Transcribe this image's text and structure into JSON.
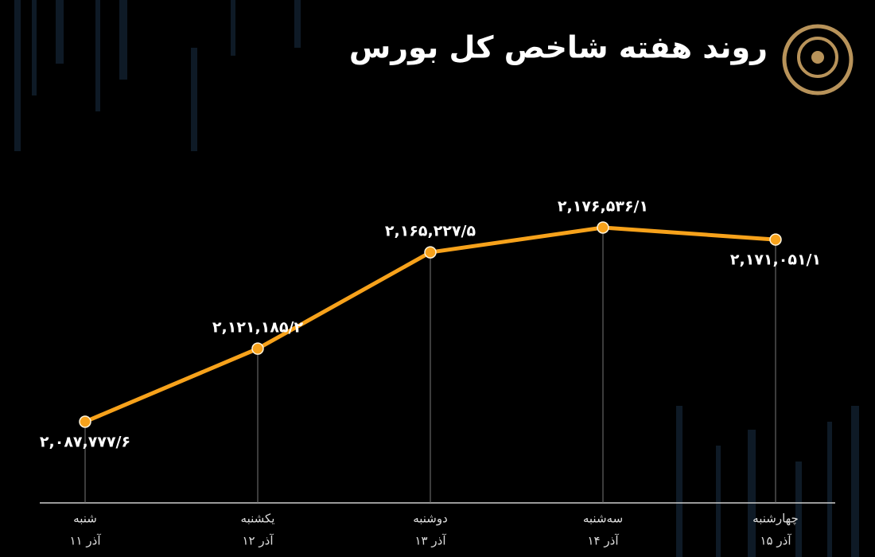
{
  "chart_data": {
    "type": "line",
    "title": "روند هفته شاخص کل بورس",
    "categories": [
      "شنبه",
      "یکشنبه",
      "دوشنبه",
      "سه‌شنبه",
      "چهارشنبه"
    ],
    "dates": [
      "۱۱ آذر",
      "۱۲ آذر",
      "۱۳ آذر",
      "۱۴ آذر",
      "۱۵ آذر"
    ],
    "values": [
      2087777.6,
      2121185.2,
      2165227.5,
      2176536.1,
      2171051.1
    ],
    "value_labels": [
      "۲,۰۸۷,۷۷۷/۶",
      "۲,۱۲۱,۱۸۵/۲",
      "۲,۱۶۵,۲۲۷/۵",
      "۲,۱۷۶,۵۳۶/۱",
      "۲,۱۷۱,۰۵۱/۱"
    ],
    "color": "#f7a21b"
  }
}
